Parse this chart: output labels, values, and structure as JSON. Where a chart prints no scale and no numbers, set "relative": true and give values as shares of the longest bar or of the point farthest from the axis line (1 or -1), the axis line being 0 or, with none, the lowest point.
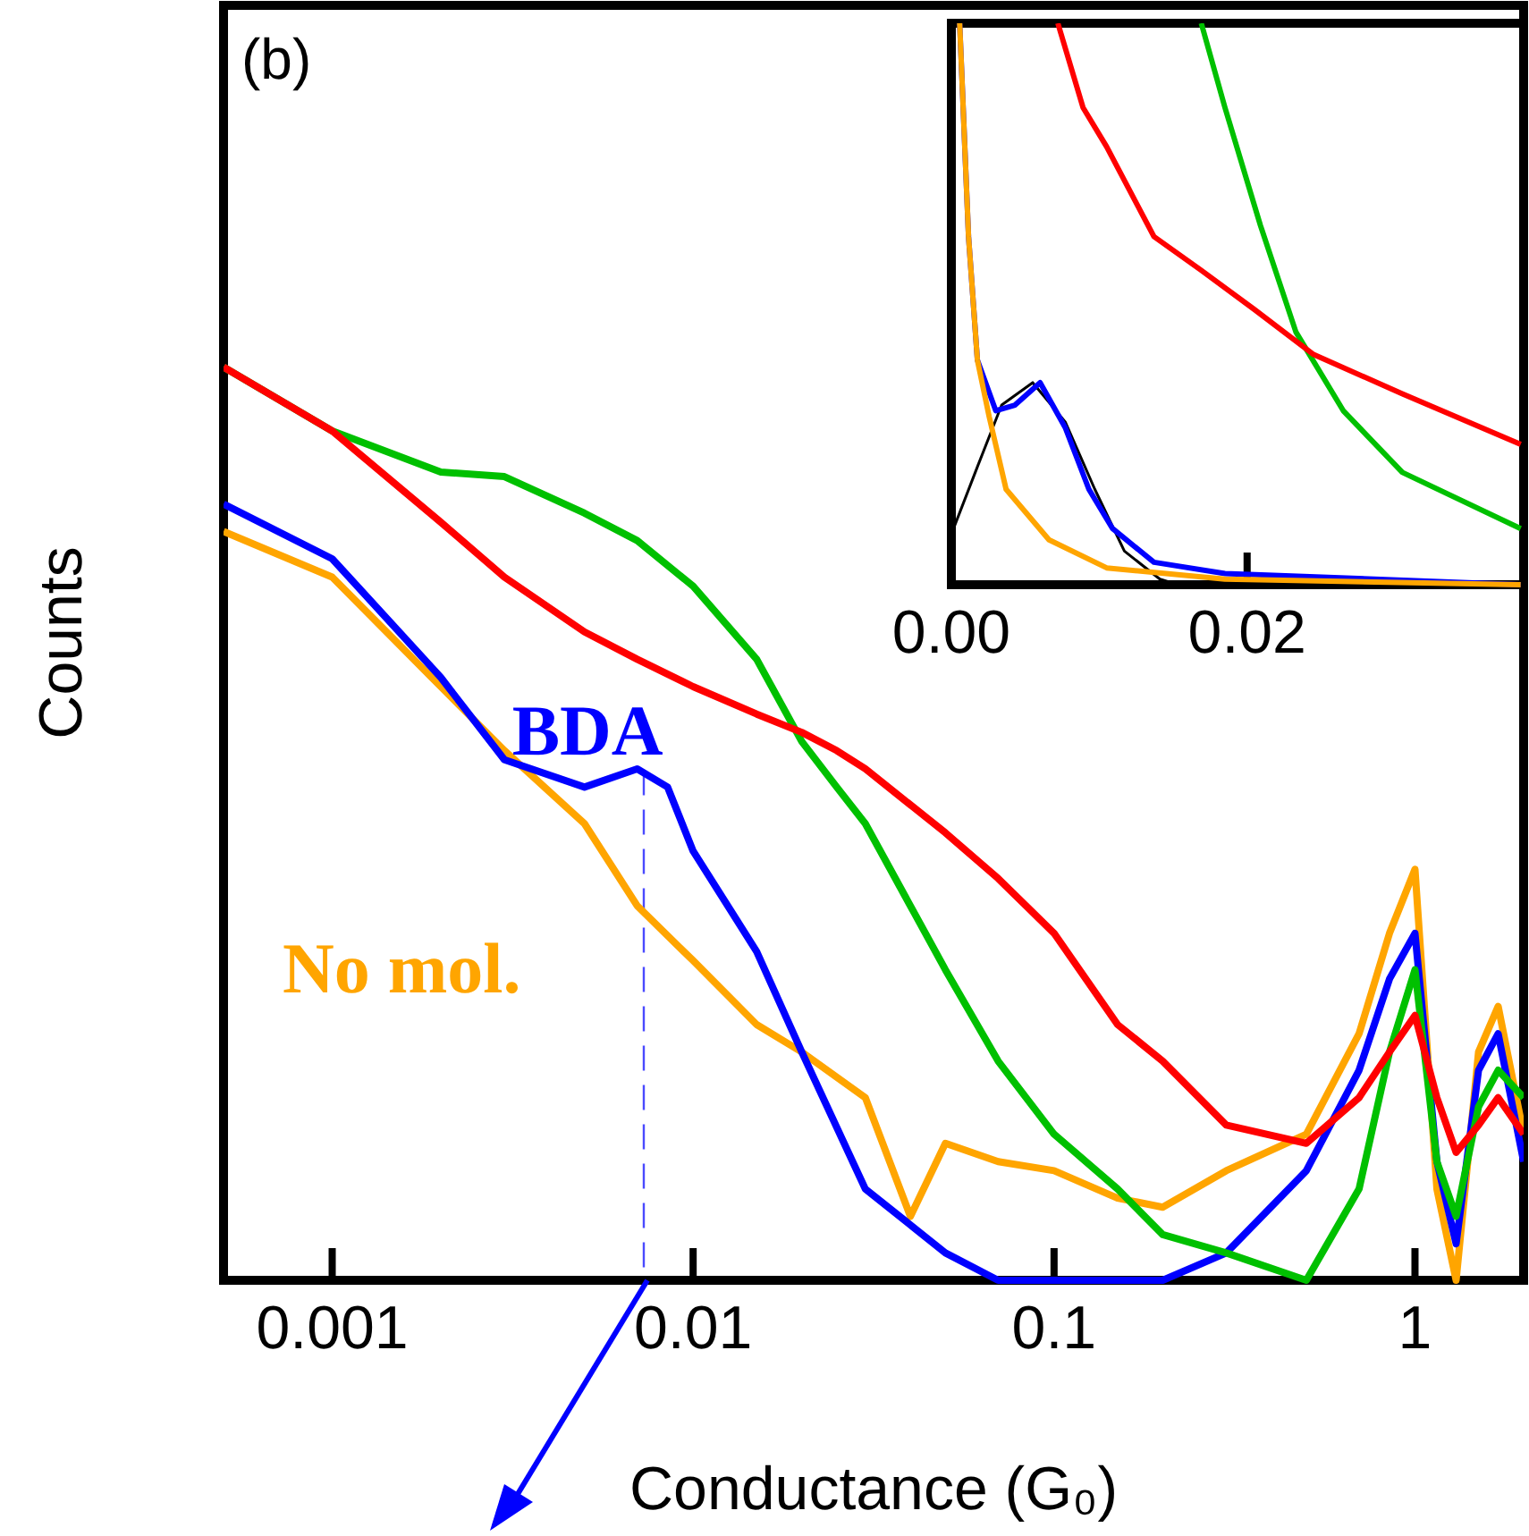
{
  "chart_data": [
    {
      "type": "line",
      "xlabel": "Conductance (G₀)",
      "ylabel": "Counts",
      "annotations": [
        "(b)"
      ],
      "log": "x",
      "relative": true,
      "xlim": [
        0.0005,
        2
      ],
      "xticks": [
        0.001,
        0.01,
        0.1,
        1
      ],
      "ref_lines": [
        {
          "axis": "x",
          "value": 0.0073,
          "color": "#4a4aff",
          "line_style": "dashed"
        }
      ],
      "series": [
        {
          "color": "#ff0000",
          "x": [
            0.0005,
            0.001,
            0.002,
            0.003,
            0.005,
            0.007,
            0.01,
            0.015,
            0.02,
            0.025,
            0.03,
            0.05,
            0.07,
            0.1,
            0.15,
            0.2,
            0.3,
            0.5,
            0.7,
            0.85,
            1.0,
            1.15,
            1.3,
            1.5,
            1.7,
            2
          ],
          "values": [
            1.0,
            0.93,
            0.83,
            0.77,
            0.71,
            0.68,
            0.65,
            0.62,
            0.6,
            0.58,
            0.56,
            0.49,
            0.44,
            0.38,
            0.28,
            0.24,
            0.17,
            0.15,
            0.2,
            0.25,
            0.29,
            0.2,
            0.14,
            0.17,
            0.2,
            0.16
          ]
        },
        {
          "color": "#00c000",
          "x": [
            0.0005,
            0.001,
            0.002,
            0.003,
            0.005,
            0.007,
            0.01,
            0.015,
            0.02,
            0.025,
            0.03,
            0.05,
            0.07,
            0.1,
            0.15,
            0.2,
            0.3,
            0.5,
            0.7,
            0.85,
            1.0,
            1.15,
            1.3,
            1.5,
            1.7,
            2
          ],
          "values": [
            1.0,
            0.93,
            0.885,
            0.88,
            0.84,
            0.81,
            0.76,
            0.68,
            0.59,
            0.54,
            0.5,
            0.34,
            0.24,
            0.16,
            0.1,
            0.05,
            0.03,
            0.0,
            0.1,
            0.25,
            0.34,
            0.13,
            0.07,
            0.19,
            0.23,
            0.2
          ]
        },
        {
          "name": "BDA",
          "color": "#0000ff",
          "x": [
            0.0005,
            0.001,
            0.002,
            0.003,
            0.005,
            0.007,
            0.0085,
            0.01,
            0.015,
            0.02,
            0.03,
            0.05,
            0.07,
            0.1,
            0.15,
            0.2,
            0.3,
            0.5,
            0.7,
            0.85,
            1.0,
            1.15,
            1.3,
            1.5,
            1.7,
            2
          ],
          "values": [
            0.85,
            0.79,
            0.66,
            0.57,
            0.54,
            0.56,
            0.54,
            0.47,
            0.36,
            0.25,
            0.1,
            0.03,
            0.0,
            0.0,
            0.0,
            0.0,
            0.03,
            0.12,
            0.23,
            0.33,
            0.38,
            0.13,
            0.04,
            0.23,
            0.27,
            0.13
          ]
        },
        {
          "name": "No mol.",
          "color": "#ffa500",
          "x": [
            0.0005,
            0.001,
            0.002,
            0.003,
            0.005,
            0.007,
            0.01,
            0.015,
            0.02,
            0.03,
            0.04,
            0.05,
            0.07,
            0.1,
            0.15,
            0.2,
            0.3,
            0.5,
            0.7,
            0.85,
            1.0,
            1.15,
            1.3,
            1.5,
            1.7,
            2
          ],
          "values": [
            0.82,
            0.77,
            0.65,
            0.58,
            0.5,
            0.41,
            0.35,
            0.28,
            0.25,
            0.2,
            0.07,
            0.15,
            0.13,
            0.12,
            0.09,
            0.08,
            0.12,
            0.16,
            0.27,
            0.38,
            0.45,
            0.1,
            0.0,
            0.25,
            0.3,
            0.16
          ]
        }
      ]
    },
    {
      "type": "line",
      "relative": true,
      "xlim": [
        0,
        0.0387
      ],
      "xticks": [
        {
          "value": 0,
          "label": "0.00"
        },
        0.02
      ],
      "series": [
        {
          "color": "#ff0000",
          "x": [
            0.0072,
            0.0089,
            0.0105,
            0.0137,
            0.0169,
            0.0205,
            0.0245,
            0.0305,
            0.0385
          ],
          "values": [
            1.0,
            0.85,
            0.78,
            0.62,
            0.56,
            0.49,
            0.41,
            0.34,
            0.25
          ]
        },
        {
          "color": "#00c000",
          "x": [
            0.0169,
            0.0185,
            0.0209,
            0.0233,
            0.0265,
            0.0305,
            0.0385
          ],
          "values": [
            1.0,
            0.85,
            0.64,
            0.45,
            0.31,
            0.2,
            0.1
          ]
        },
        {
          "color": "#ffa500",
          "x": [
            0.00056,
            0.00116,
            0.00176,
            0.00255,
            0.0037,
            0.0066,
            0.0105,
            0.0185,
            0.0385
          ],
          "values": [
            1.0,
            0.62,
            0.4,
            0.3,
            0.17,
            0.08,
            0.03,
            0.01,
            0.0
          ]
        },
        {
          "color": "#0000ff",
          "x": [
            0.00056,
            0.00116,
            0.00176,
            0.003,
            0.0043,
            0.006,
            0.0077,
            0.0093,
            0.0109,
            0.0137,
            0.0185,
            0.0385
          ],
          "values": [
            1.0,
            0.62,
            0.4,
            0.31,
            0.32,
            0.36,
            0.28,
            0.17,
            0.1,
            0.04,
            0.02,
            0.0
          ]
        },
        {
          "color": "#000000",
          "x": [
            0.0,
            0.00176,
            0.0034,
            0.0055,
            0.0077,
            0.0097,
            0.0117,
            0.0141,
            0.0153
          ],
          "values": [
            0.09,
            0.21,
            0.32,
            0.36,
            0.29,
            0.17,
            0.06,
            0.01,
            0.0
          ]
        }
      ]
    }
  ]
}
